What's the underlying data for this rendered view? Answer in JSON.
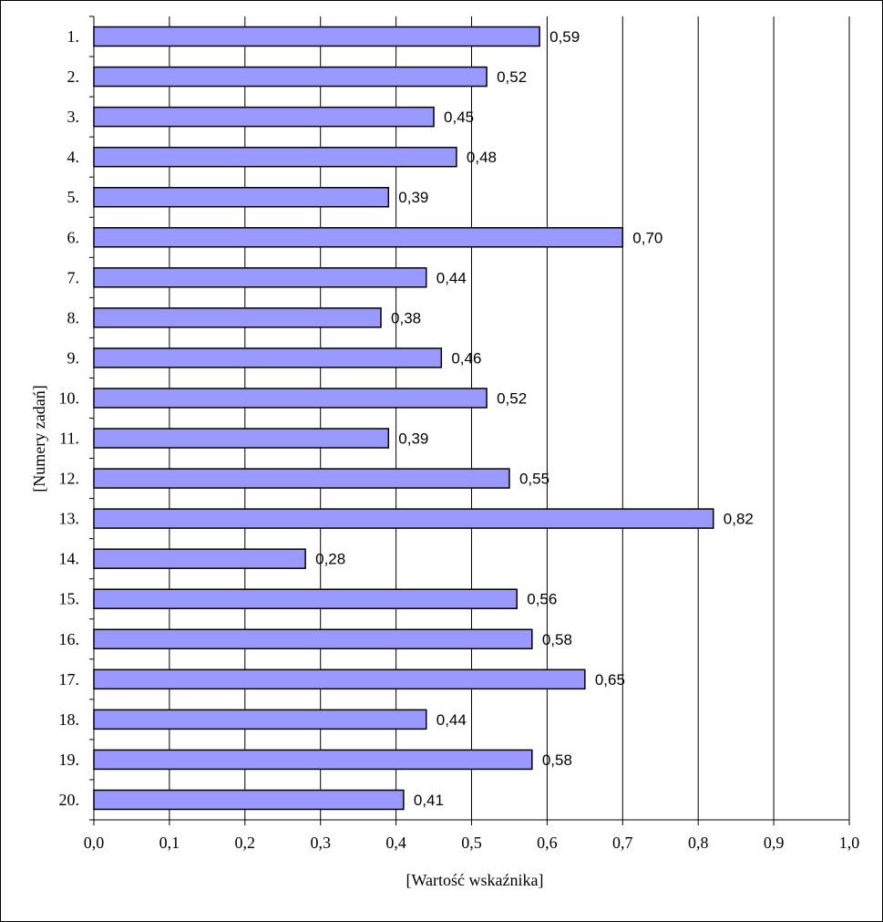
{
  "chart_data": {
    "type": "bar",
    "orientation": "horizontal",
    "categories": [
      "1.",
      "2.",
      "3.",
      "4.",
      "5.",
      "6.",
      "7.",
      "8.",
      "9.",
      "10.",
      "11.",
      "12.",
      "13.",
      "14.",
      "15.",
      "16.",
      "17.",
      "18.",
      "19.",
      "20."
    ],
    "values": [
      0.59,
      0.52,
      0.45,
      0.48,
      0.39,
      0.7,
      0.44,
      0.38,
      0.46,
      0.52,
      0.39,
      0.55,
      0.82,
      0.28,
      0.56,
      0.58,
      0.65,
      0.44,
      0.58,
      0.41
    ],
    "value_labels": [
      "0,59",
      "0,52",
      "0,45",
      "0,48",
      "0,39",
      "0,70",
      "0,44",
      "0,38",
      "0,46",
      "0,52",
      "0,39",
      "0,55",
      "0,82",
      "0,28",
      "0,56",
      "0,58",
      "0,65",
      "0,44",
      "0,58",
      "0,41"
    ],
    "xlabel": "[Wartość wskaźnika]",
    "ylabel": "[Numery zadań]",
    "xlim": [
      0,
      1
    ],
    "x_ticks": [
      0,
      0.1,
      0.2,
      0.3,
      0.4,
      0.5,
      0.6,
      0.7,
      0.8,
      0.9,
      1.0
    ],
    "x_tick_labels": [
      "0,0",
      "0,1",
      "0,2",
      "0,3",
      "0,4",
      "0,5",
      "0,6",
      "0,7",
      "0,8",
      "0,9",
      "1,0"
    ],
    "grid": "vertical",
    "legend": "none",
    "bar_color": "#9999ff",
    "bar_edge_color": "#000000"
  }
}
